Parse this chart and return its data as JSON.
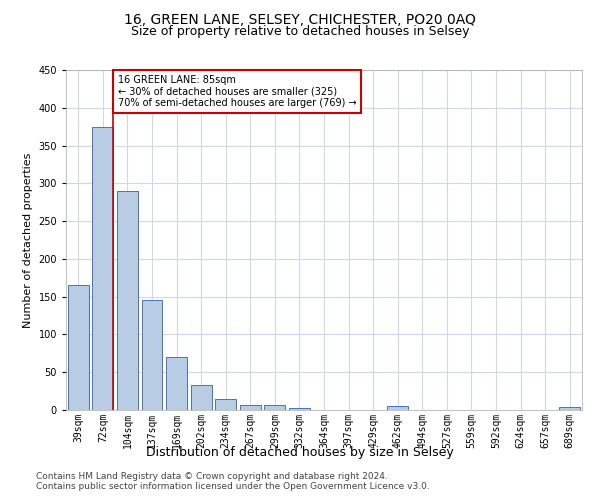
{
  "title1": "16, GREEN LANE, SELSEY, CHICHESTER, PO20 0AQ",
  "title2": "Size of property relative to detached houses in Selsey",
  "xlabel": "Distribution of detached houses by size in Selsey",
  "ylabel": "Number of detached properties",
  "categories": [
    "39sqm",
    "72sqm",
    "104sqm",
    "137sqm",
    "169sqm",
    "202sqm",
    "234sqm",
    "267sqm",
    "299sqm",
    "332sqm",
    "364sqm",
    "397sqm",
    "429sqm",
    "462sqm",
    "494sqm",
    "527sqm",
    "559sqm",
    "592sqm",
    "624sqm",
    "657sqm",
    "689sqm"
  ],
  "values": [
    165,
    375,
    290,
    145,
    70,
    33,
    14,
    7,
    6,
    3,
    0,
    0,
    0,
    5,
    0,
    0,
    0,
    0,
    0,
    0,
    4
  ],
  "bar_color": "#b8cce4",
  "bar_edge_color": "#4472c4",
  "ylim": [
    0,
    450
  ],
  "yticks": [
    0,
    50,
    100,
    150,
    200,
    250,
    300,
    350,
    400,
    450
  ],
  "annotation_text": "16 GREEN LANE: 85sqm\n← 30% of detached houses are smaller (325)\n70% of semi-detached houses are larger (769) →",
  "annotation_box_color": "#ffffff",
  "annotation_box_edge": "#cc0000",
  "vline_color": "#cc0000",
  "footer1": "Contains HM Land Registry data © Crown copyright and database right 2024.",
  "footer2": "Contains public sector information licensed under the Open Government Licence v3.0.",
  "bg_color": "#ffffff",
  "grid_color": "#d0d8e8",
  "title1_fontsize": 10,
  "title2_fontsize": 9,
  "xlabel_fontsize": 9,
  "ylabel_fontsize": 8,
  "tick_fontsize": 7,
  "footer_fontsize": 6.5
}
